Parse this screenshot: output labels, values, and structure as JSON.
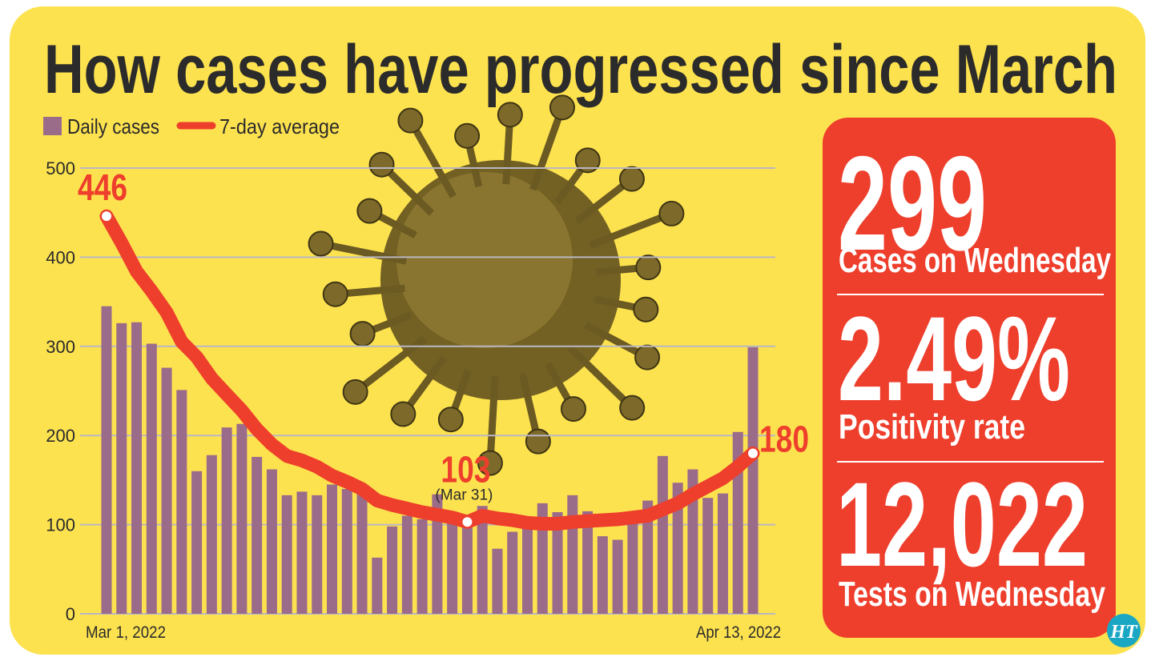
{
  "title": "How cases have progressed since March",
  "colors": {
    "background": "#FDE24F",
    "bars": "#9B6B8A",
    "line": "#EE3E2C",
    "panel": "#EE3E2C",
    "grid": "#B9B7C2",
    "logo": "#1AA7C4"
  },
  "stats": [
    {
      "value": "299",
      "label": "Cases on Wednesday"
    },
    {
      "value": "2.49%",
      "label": "Positivity rate"
    },
    {
      "value": "12,022",
      "label": "Tests on Wednesday"
    }
  ],
  "logo": "HT",
  "decor_icon": "virus-illustration",
  "chart_data": {
    "type": "bar",
    "title": "How cases have progressed since March",
    "legend": [
      "Daily cases",
      "7-day average"
    ],
    "legend_placement": "top-left",
    "x_start_label": "Mar 1, 2022",
    "x_end_label": "Apr 13, 2022",
    "ylim": [
      0,
      500
    ],
    "yticks": [
      0,
      100,
      200,
      300,
      400,
      500
    ],
    "grid": true,
    "series": [
      {
        "name": "Daily cases",
        "type": "bar",
        "values": [
          345,
          326,
          327,
          303,
          276,
          251,
          160,
          178,
          209,
          213,
          176,
          162,
          133,
          137,
          133,
          145,
          140,
          136,
          63,
          98,
          110,
          106,
          134,
          105,
          100,
          121,
          73,
          92,
          96,
          124,
          114,
          133,
          115,
          87,
          83,
          105,
          127,
          177,
          147,
          162,
          130,
          135,
          204,
          299
        ]
      },
      {
        "name": "7-day average",
        "type": "line",
        "values": [
          446,
          416,
          384,
          362,
          338,
          305,
          288,
          264,
          246,
          228,
          207,
          190,
          177,
          172,
          165,
          155,
          148,
          140,
          127,
          122,
          118,
          114,
          111,
          108,
          103,
          110,
          107,
          105,
          102,
          101,
          101,
          103,
          104,
          105,
          106,
          108,
          110,
          117,
          124,
          134,
          143,
          152,
          165,
          180
        ]
      }
    ],
    "annotations": [
      {
        "day_index": 0,
        "value": "446"
      },
      {
        "day_index": 24,
        "value": "103",
        "sublabel": "(Mar 31)"
      },
      {
        "day_index": 43,
        "value": "180"
      }
    ]
  }
}
